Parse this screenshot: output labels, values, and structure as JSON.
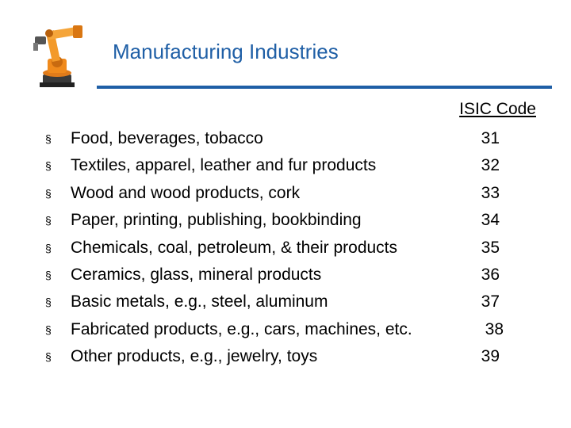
{
  "slide": {
    "title": "Manufacturing Industries",
    "code_header": "ISIC Code",
    "bullet_glyph": "§",
    "logo_icon": "industrial-robot-arm-icon",
    "accent_color": "#1f5fa6",
    "items": [
      {
        "label": "Food, beverages, tobacco",
        "code": "31"
      },
      {
        "label": "Textiles, apparel, leather and fur products",
        "code": "32"
      },
      {
        "label": "Wood and wood products, cork",
        "code": "33"
      },
      {
        "label": "Paper, printing, publishing, bookbinding",
        "code": "34"
      },
      {
        "label": "Chemicals, coal, petroleum, & their products",
        "code": "35"
      },
      {
        "label": "Ceramics, glass, mineral products",
        "code": "36"
      },
      {
        "label": "Basic metals, e.g., steel, aluminum",
        "code": "37"
      },
      {
        "label": "Fabricated products, e.g., cars, machines, etc.",
        "code": "38"
      },
      {
        "label": "Other products, e.g., jewelry, toys",
        "code": "39"
      }
    ]
  }
}
